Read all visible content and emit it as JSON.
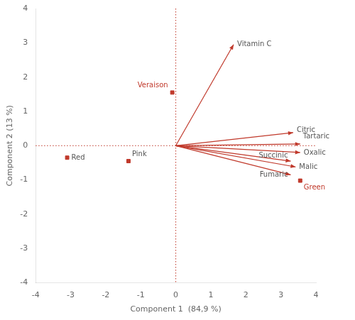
{
  "chart_data": {
    "type": "scatter",
    "xlabel": "Component 1  (84,9 %)",
    "ylabel": "Component 2 (13 %)",
    "xlim": [
      -4,
      4
    ],
    "ylim": [
      -4,
      4
    ],
    "xticks": [
      -4,
      -3,
      -2,
      -1,
      0,
      1,
      2,
      3,
      4
    ],
    "yticks": [
      -4,
      -3,
      -2,
      -1,
      0,
      1,
      2,
      3,
      4
    ],
    "grid": false,
    "reference_lines": {
      "x": 0,
      "y": 0,
      "color": "#c0392b",
      "line_style": "dotted"
    },
    "series": [
      {
        "type": "arrow",
        "color": "#c0392b",
        "x": [
          1.65,
          3.35,
          3.55,
          3.55,
          3.28,
          3.42,
          3.28
        ],
        "y": [
          2.95,
          0.38,
          0.05,
          -0.2,
          -0.45,
          -0.62,
          -0.85
        ],
        "labels": [
          "Vitamin C",
          "Citric",
          "Tartaric",
          "Oxalic",
          "Succinic",
          "Malic",
          "Fumaric"
        ],
        "label_colors": [
          "#555555",
          "#555555",
          "#555555",
          "#555555",
          "#555555",
          "#555555",
          "#555555"
        ]
      },
      {
        "type": "scatter",
        "marker": "square",
        "color": "#c0392b",
        "x": [
          -3.1,
          -1.35,
          -0.1,
          3.55
        ],
        "y": [
          -0.35,
          -0.45,
          1.55,
          -1.02
        ],
        "labels": [
          "Red",
          "Pink",
          "Veraison",
          "Green"
        ],
        "label_colors": [
          "#555555",
          "#555555",
          "#c0392b",
          "#c0392b"
        ]
      }
    ]
  }
}
